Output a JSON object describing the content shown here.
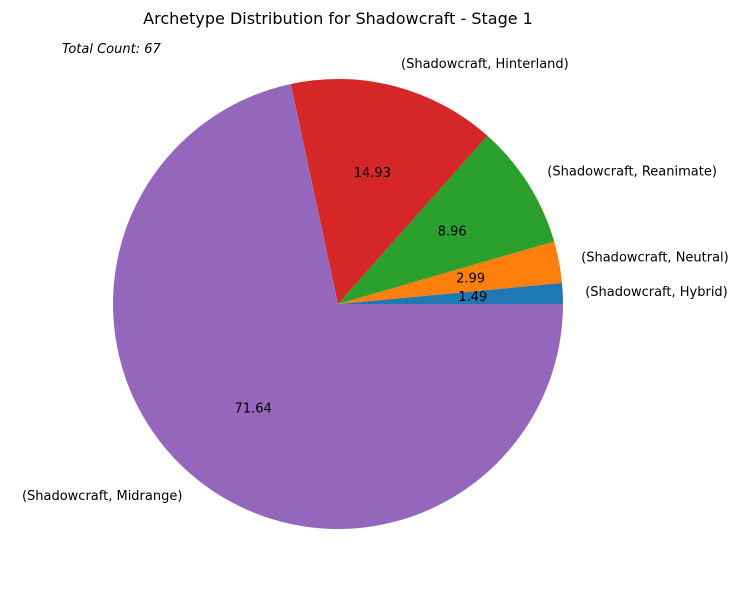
{
  "chart_data": {
    "type": "pie",
    "title": "Archetype Distribution for Shadowcraft - Stage 1",
    "annotation": "Total Count: 67",
    "categories": [
      "(Shadowcraft, Hybrid)",
      "(Shadowcraft, Neutral)",
      "(Shadowcraft, Reanimate)",
      "(Shadowcraft, Hinterland)",
      "(Shadowcraft, Midrange)"
    ],
    "values": [
      1.49,
      2.99,
      8.96,
      14.93,
      71.64
    ],
    "value_labels": [
      "1.49",
      "2.99",
      "8.96",
      "14.93",
      "71.64"
    ],
    "colors": [
      "#1f77b4",
      "#ff7f0e",
      "#2ca02c",
      "#d62728",
      "#9467bd"
    ],
    "start_angle": 0,
    "direction": "counterclockwise",
    "legend": "none"
  }
}
